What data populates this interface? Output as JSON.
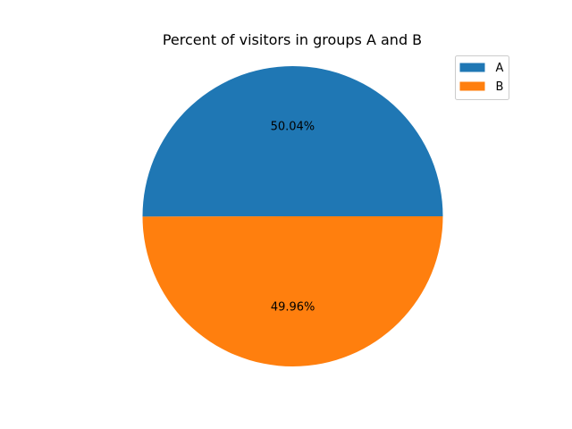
{
  "chart_data": {
    "type": "pie",
    "title": "Percent of visitors in groups A and B",
    "categories": [
      "A",
      "B"
    ],
    "values": [
      50.04,
      49.96
    ],
    "labels": [
      "50.04%",
      "49.96%"
    ],
    "colors": [
      "#1f77b4",
      "#ff7f0e"
    ],
    "legend": {
      "placement": "top-right",
      "entries": [
        "A",
        "B"
      ]
    }
  }
}
